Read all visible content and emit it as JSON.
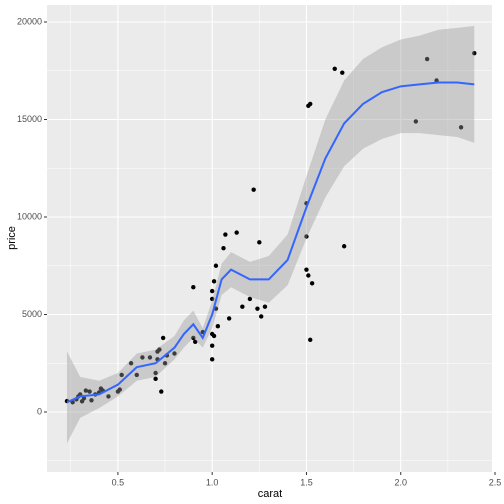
{
  "chart_data": {
    "type": "scatter",
    "x_label": "carat",
    "y_label": "price",
    "x": [
      0.23,
      0.26,
      0.28,
      0.29,
      0.3,
      0.31,
      0.32,
      0.33,
      0.35,
      0.36,
      0.38,
      0.4,
      0.41,
      0.42,
      0.45,
      0.5,
      0.51,
      0.52,
      0.57,
      0.6,
      0.63,
      0.67,
      0.7,
      0.7,
      0.71,
      0.71,
      0.72,
      0.73,
      0.74,
      0.75,
      0.76,
      0.8,
      0.9,
      0.9,
      0.91,
      0.95,
      1.0,
      1.0,
      1.0,
      1.0,
      1.0,
      1.01,
      1.01,
      1.02,
      1.02,
      1.03,
      1.06,
      1.07,
      1.09,
      1.13,
      1.16,
      1.2,
      1.22,
      1.24,
      1.25,
      1.26,
      1.28,
      1.5,
      1.5,
      1.5,
      1.51,
      1.51,
      1.52,
      1.52,
      1.53,
      1.7,
      1.65,
      1.69,
      2.08,
      2.14,
      2.19,
      2.32,
      2.39
    ],
    "values": [
      560,
      500,
      650,
      800,
      900,
      550,
      700,
      1100,
      1050,
      600,
      900,
      1000,
      1200,
      1100,
      800,
      1050,
      1150,
      1900,
      2500,
      1900,
      2800,
      2800,
      1700,
      2000,
      2700,
      3100,
      3200,
      1050,
      3800,
      2500,
      2900,
      3000,
      6400,
      3800,
      3600,
      4100,
      2700,
      3400,
      4000,
      5800,
      6200,
      6700,
      3900,
      5300,
      7500,
      4400,
      8400,
      9100,
      4800,
      9200,
      5400,
      5800,
      11400,
      5300,
      8700,
      4900,
      5400,
      10700,
      9000,
      7300,
      7000,
      15700,
      15800,
      3700,
      6600,
      8500,
      17600,
      17400,
      14900,
      18100,
      17000,
      14600,
      18400
    ],
    "color": "#000000",
    "smooth": {
      "color": "#3366ff",
      "x": [
        0.23,
        0.3,
        0.4,
        0.5,
        0.6,
        0.7,
        0.8,
        0.85,
        0.9,
        0.95,
        1.0,
        1.05,
        1.1,
        1.2,
        1.3,
        1.4,
        1.5,
        1.6,
        1.7,
        1.8,
        1.9,
        2.0,
        2.1,
        2.2,
        2.3,
        2.39
      ],
      "y": [
        500,
        800,
        900,
        1400,
        2300,
        2500,
        3300,
        4000,
        4500,
        3800,
        5000,
        6800,
        7300,
        6800,
        6800,
        7800,
        10500,
        13000,
        14800,
        15800,
        16400,
        16700,
        16800,
        16900,
        16900,
        16800
      ],
      "ymin": [
        -1600,
        -300,
        200,
        800,
        1600,
        1800,
        2700,
        3300,
        3800,
        3300,
        4300,
        6000,
        6400,
        5900,
        5600,
        6500,
        8900,
        11000,
        12600,
        13500,
        14000,
        14300,
        14300,
        14200,
        14100,
        13800
      ],
      "ymax": [
        3100,
        1800,
        1600,
        2000,
        3000,
        3200,
        3900,
        4700,
        5200,
        4300,
        5700,
        7600,
        8200,
        7700,
        8000,
        9100,
        12100,
        15000,
        17000,
        18100,
        18700,
        19100,
        19300,
        19600,
        19700,
        19800
      ]
    },
    "xlim": [
      0.124,
      2.484
    ],
    "ylim": [
      -3077,
      20872
    ],
    "xticks": [
      0.5,
      {
        "value": 1,
        "label": "1.0"
      },
      1.5,
      {
        "value": 2,
        "label": "2.0"
      },
      2.5
    ],
    "yticks": [
      0,
      5000,
      10000,
      15000,
      20000
    ],
    "grid": true
  }
}
